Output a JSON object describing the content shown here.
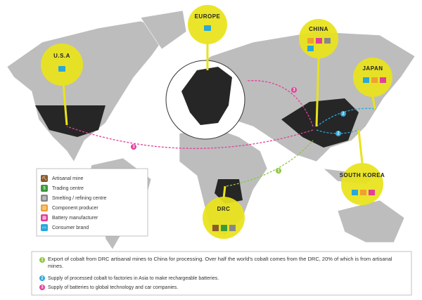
{
  "map": {
    "regions": [
      {
        "label": "EUROPE"
      },
      {
        "label": "U.S.A"
      },
      {
        "label": "CHINA"
      },
      {
        "label": "JAPAN"
      },
      {
        "label": "SOUTH KOREA"
      },
      {
        "label": "DRC"
      }
    ]
  },
  "legend": {
    "items": [
      {
        "icon": "⛏",
        "label": "Artisanal mine"
      },
      {
        "icon": "$",
        "label": "Trading centre"
      },
      {
        "icon": "▥",
        "label": "Smelting / refining centre"
      },
      {
        "icon": "▤",
        "label": "Component producer"
      },
      {
        "icon": "▦",
        "label": "Battery manufacturer"
      },
      {
        "icon": "▭",
        "label": "Consumer brand"
      }
    ]
  },
  "routes": [
    {
      "number": 1,
      "text": "Export of cobalt from DRC artisanal mines to China for processing. Over half the world's cobalt comes from the DRC, 20% of which is from artisanal mines."
    },
    {
      "number": 2,
      "text": "Supply of processed cobalt to factories in Asia to make rechargeable batteries."
    },
    {
      "number": 3,
      "text": "Supply of batteries to global technology and car companies."
    }
  ]
}
